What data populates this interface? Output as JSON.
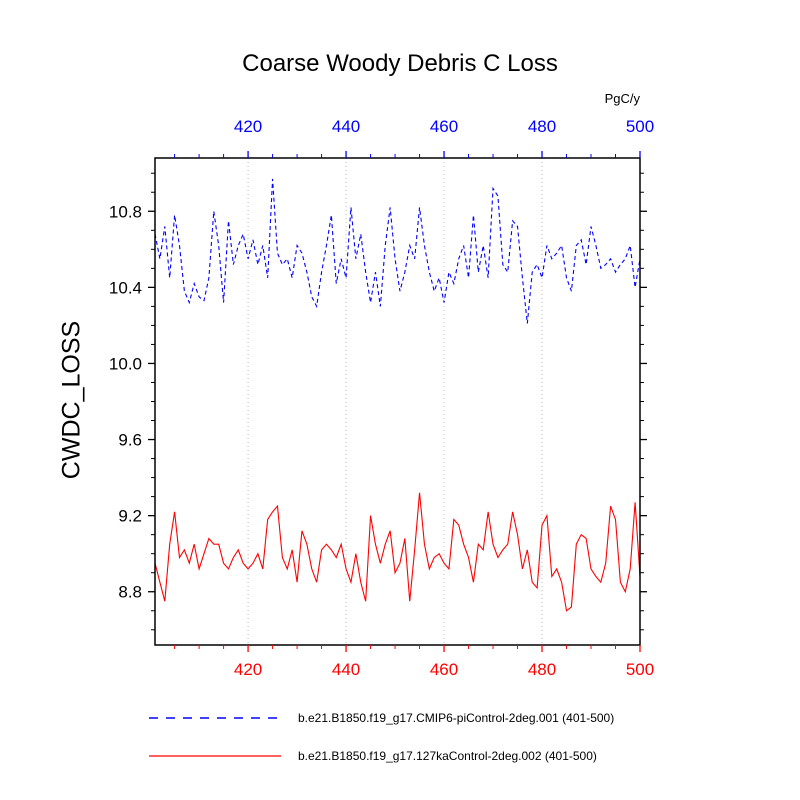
{
  "chart_data": {
    "type": "line",
    "title": "Coarse Woody Debris C Loss",
    "top_axis_units": "PgC/y",
    "ylabel": "CWDC_LOSS",
    "x_start": 401,
    "xlim": [
      401,
      500
    ],
    "ylim": [
      8.52,
      11.08
    ],
    "xticks": [
      420,
      440,
      460,
      480,
      500
    ],
    "xtick_minor_step": 5,
    "yticks": [
      8.8,
      9.2,
      9.6,
      10.0,
      10.4,
      10.8
    ],
    "ytick_minor_step": 0.1,
    "gridlines_x": [
      420,
      440,
      460,
      480
    ],
    "grid_color": "#bbbbbb",
    "top_axis_color": "#0000ff",
    "bottom_axis_color": "#ff0000",
    "left_axis_color": "#000000",
    "legend_position": "bottom",
    "series": [
      {
        "name": "CMIP6-piControl",
        "legend": "b.e21.B1850.f19_g17.CMIP6-piControl-2deg.001 (401-500)",
        "color": "#0000ff",
        "line_style": "dashed",
        "values": [
          10.68,
          10.55,
          10.72,
          10.45,
          10.78,
          10.62,
          10.38,
          10.32,
          10.42,
          10.35,
          10.33,
          10.45,
          10.8,
          10.62,
          10.32,
          10.75,
          10.52,
          10.62,
          10.68,
          10.55,
          10.65,
          10.52,
          10.62,
          10.45,
          10.97,
          10.58,
          10.52,
          10.55,
          10.45,
          10.62,
          10.58,
          10.48,
          10.35,
          10.3,
          10.48,
          10.62,
          10.78,
          10.42,
          10.55,
          10.45,
          10.82,
          10.55,
          10.68,
          10.48,
          10.32,
          10.48,
          10.3,
          10.62,
          10.82,
          10.55,
          10.38,
          10.48,
          10.62,
          10.55,
          10.82,
          10.62,
          10.48,
          10.38,
          10.45,
          10.32,
          10.48,
          10.42,
          10.55,
          10.62,
          10.45,
          10.78,
          10.48,
          10.62,
          10.45,
          10.92,
          10.88,
          10.52,
          10.48,
          10.75,
          10.72,
          10.45,
          10.21,
          10.48,
          10.52,
          10.45,
          10.62,
          10.55,
          10.58,
          10.62,
          10.45,
          10.38,
          10.62,
          10.65,
          10.52,
          10.72,
          10.62,
          10.5,
          10.52,
          10.55,
          10.48,
          10.52,
          10.55,
          10.62,
          10.4,
          10.55
        ]
      },
      {
        "name": "127kaControl",
        "legend": "b.e21.B1850.f19_g17.127kaControl-2deg.002 (401-500)",
        "color": "#ff0000",
        "line_style": "solid",
        "values": [
          8.95,
          8.85,
          8.75,
          9.05,
          9.22,
          8.98,
          9.02,
          8.95,
          9.05,
          8.92,
          9.0,
          9.08,
          9.05,
          9.05,
          8.95,
          8.92,
          8.98,
          9.02,
          8.95,
          8.92,
          8.95,
          9.0,
          8.92,
          9.18,
          9.22,
          9.25,
          8.98,
          8.92,
          9.02,
          8.85,
          9.12,
          9.05,
          8.92,
          8.85,
          9.02,
          9.05,
          9.02,
          8.98,
          9.05,
          8.92,
          8.85,
          9.0,
          8.85,
          8.75,
          9.2,
          9.05,
          8.95,
          9.05,
          9.12,
          8.9,
          8.95,
          9.08,
          8.75,
          9.02,
          9.32,
          9.05,
          8.92,
          8.98,
          9.0,
          8.95,
          8.92,
          9.18,
          9.15,
          9.05,
          8.98,
          8.85,
          9.05,
          9.02,
          9.22,
          9.05,
          8.98,
          9.02,
          9.05,
          9.22,
          9.1,
          8.92,
          9.02,
          8.85,
          8.82,
          9.15,
          9.2,
          8.88,
          8.92,
          8.85,
          8.7,
          8.72,
          9.05,
          9.1,
          9.08,
          8.92,
          8.88,
          8.85,
          8.95,
          9.25,
          9.18,
          8.85,
          8.8,
          8.92,
          9.27,
          8.88
        ]
      }
    ]
  }
}
